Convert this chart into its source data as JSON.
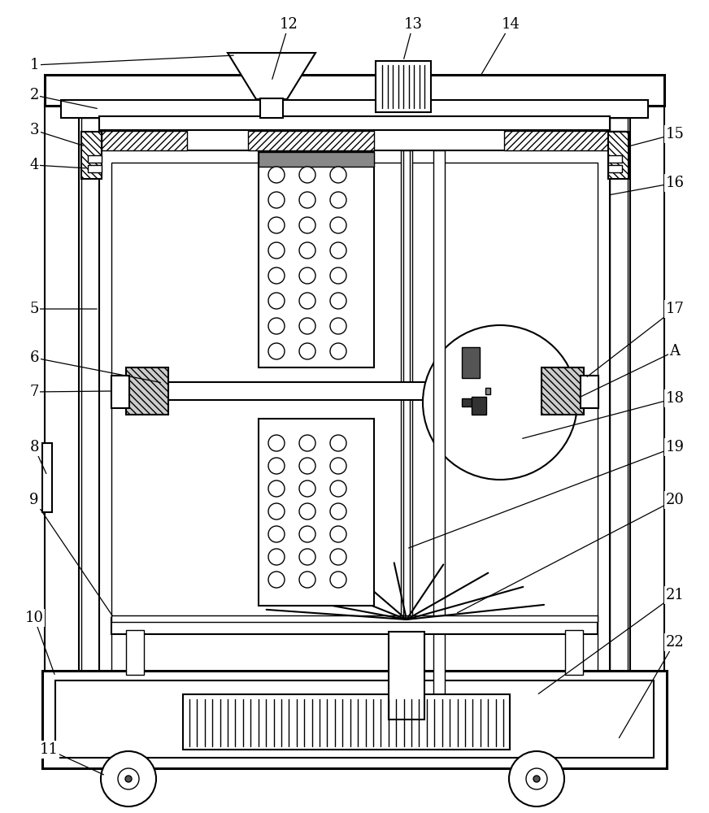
{
  "bg_color": "#ffffff",
  "line_color": "#000000",
  "fig_width": 8.72,
  "fig_height": 10.0
}
